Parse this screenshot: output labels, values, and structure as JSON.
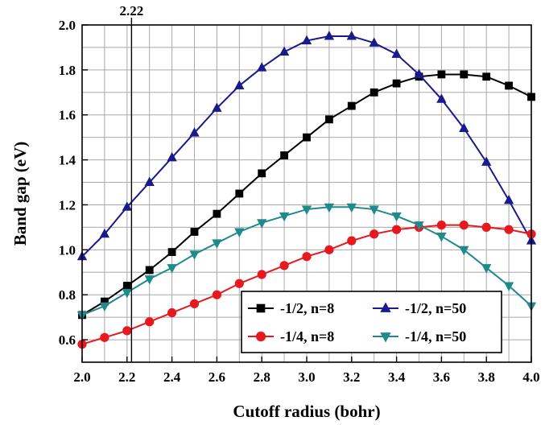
{
  "chart_data": {
    "type": "line",
    "xlabel": "Cutoff radius (bohr)",
    "ylabel": "Band gap (eV)",
    "xlim": [
      2.0,
      4.0
    ],
    "ylim": [
      0.5,
      2.0
    ],
    "xticks": [
      "2.0",
      "2.2",
      "2.4",
      "2.6",
      "2.8",
      "3.0",
      "3.2",
      "3.4",
      "3.6",
      "3.8",
      "4.0"
    ],
    "yticks": [
      "0.6",
      "0.8",
      "1.0",
      "1.2",
      "1.4",
      "1.6",
      "1.8",
      "2.0"
    ],
    "grid": true,
    "legend_position": "bottom-right",
    "annotation": {
      "label": "2.22",
      "x": 2.22
    },
    "x": [
      2.0,
      2.1,
      2.2,
      2.3,
      2.4,
      2.5,
      2.6,
      2.7,
      2.8,
      2.9,
      3.0,
      3.1,
      3.2,
      3.3,
      3.4,
      3.5,
      3.6,
      3.7,
      3.8,
      3.9,
      4.0
    ],
    "series": [
      {
        "name": "-1/2, n=8",
        "color": "#000000",
        "marker": "square",
        "values": [
          0.71,
          0.77,
          0.84,
          0.91,
          0.99,
          1.08,
          1.16,
          1.25,
          1.34,
          1.42,
          1.5,
          1.58,
          1.64,
          1.7,
          1.74,
          1.77,
          1.78,
          1.78,
          1.77,
          1.73,
          1.68
        ]
      },
      {
        "name": "-1/2, n=50",
        "color": "#1a1a8c",
        "marker": "triangle-up",
        "values": [
          0.97,
          1.07,
          1.19,
          1.3,
          1.41,
          1.52,
          1.63,
          1.73,
          1.81,
          1.88,
          1.93,
          1.95,
          1.95,
          1.92,
          1.87,
          1.78,
          1.67,
          1.54,
          1.39,
          1.22,
          1.04
        ]
      },
      {
        "name": "-1/4, n=8",
        "color": "#e8191e",
        "marker": "circle",
        "values": [
          0.58,
          0.61,
          0.64,
          0.68,
          0.72,
          0.76,
          0.8,
          0.85,
          0.89,
          0.93,
          0.97,
          1.0,
          1.04,
          1.07,
          1.09,
          1.1,
          1.11,
          1.11,
          1.1,
          1.09,
          1.07
        ]
      },
      {
        "name": "-1/4, n=50",
        "color": "#1f8a8c",
        "marker": "triangle-down",
        "values": [
          0.71,
          0.75,
          0.81,
          0.87,
          0.92,
          0.98,
          1.03,
          1.08,
          1.12,
          1.15,
          1.18,
          1.19,
          1.19,
          1.18,
          1.15,
          1.11,
          1.06,
          1.0,
          0.92,
          0.84,
          0.75
        ]
      }
    ]
  }
}
